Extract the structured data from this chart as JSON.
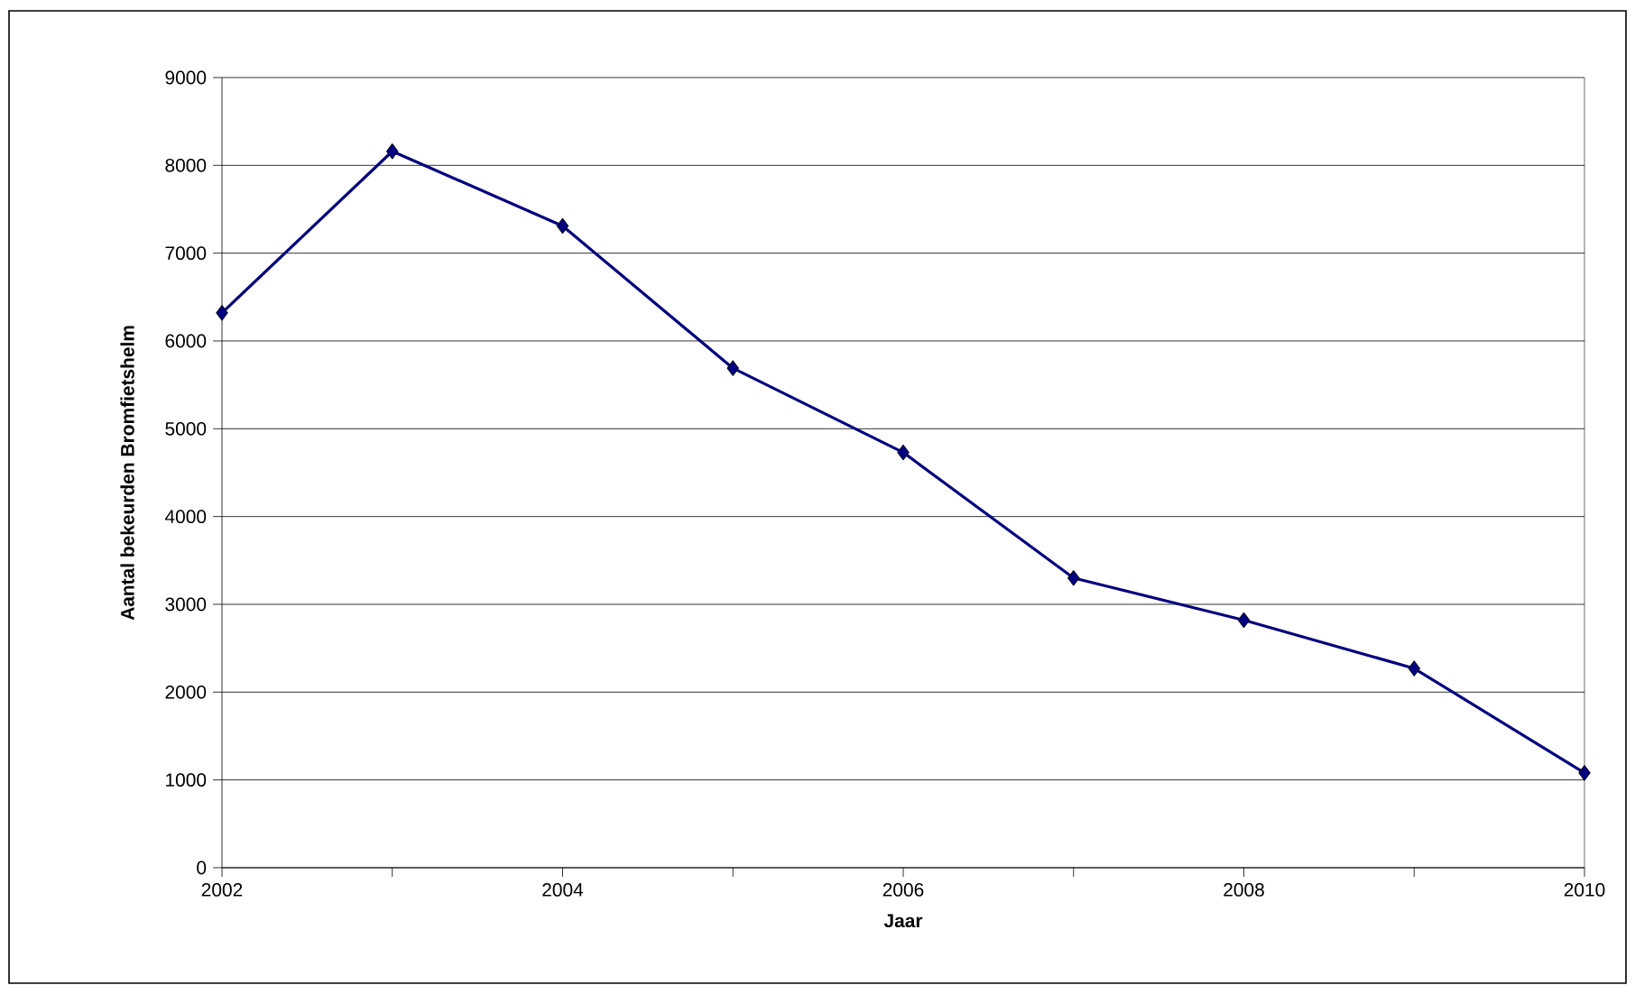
{
  "chart_data": {
    "type": "line",
    "xlabel": "Jaar",
    "ylabel": "Aantal bekeurden Bromfietshelm",
    "x": [
      2002,
      2003,
      2004,
      2005,
      2006,
      2007,
      2008,
      2009,
      2010
    ],
    "series": [
      {
        "color": "#000080",
        "values": [
          6320,
          8160,
          7310,
          5690,
          4730,
          3300,
          2820,
          2270,
          1080
        ]
      }
    ],
    "xlim": [
      2002,
      2010
    ],
    "xticks": [
      2002,
      {
        "value": 2003,
        "label": null
      },
      2004,
      {
        "value": 2005,
        "label": null
      },
      2006,
      {
        "value": 2007,
        "label": null
      },
      2008,
      {
        "value": 2009,
        "label": null
      },
      2010
    ],
    "ylim": [
      0,
      9000
    ],
    "yticks": [
      0,
      1000,
      2000,
      3000,
      4000,
      5000,
      6000,
      7000,
      8000,
      9000
    ],
    "grid": "y",
    "marker": "diamond",
    "line_style": "solid"
  }
}
